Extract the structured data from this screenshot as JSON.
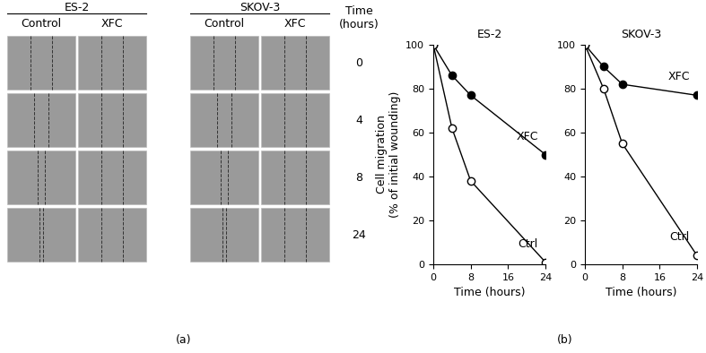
{
  "panel_a": {
    "label": "(a)",
    "groups": [
      {
        "name": "ES-2",
        "columns": [
          "Control",
          "XFC"
        ]
      },
      {
        "name": "SKOV-3",
        "columns": [
          "Control",
          "XFC"
        ]
      }
    ],
    "time_title": "Time\n(hours)",
    "times": [
      0,
      4,
      8,
      24
    ]
  },
  "panel_b": {
    "label": "(b)"
  },
  "chart_data": [
    {
      "type": "line",
      "title": "ES-2",
      "x_label": "Time (hours)",
      "y_label": "Cell migration\n(% of initial wounding)",
      "x": [
        0,
        4,
        8,
        24
      ],
      "series": [
        {
          "name": "XFC",
          "color": "#000000",
          "marker": "o",
          "line_style": "solid",
          "values": [
            100,
            86,
            77,
            50
          ]
        },
        {
          "name": "Ctrl",
          "color": "#ffffff",
          "marker": "o",
          "line_style": "solid",
          "values": [
            100,
            62,
            38,
            1
          ]
        }
      ],
      "xlim": [
        0,
        24
      ],
      "xticks": [
        0,
        8,
        16,
        24
      ],
      "ylim": [
        0,
        100
      ],
      "yticks": [
        0,
        20,
        40,
        60,
        80,
        100
      ]
    },
    {
      "type": "line",
      "title": "SKOV-3",
      "x_label": "Time (hours)",
      "x": [
        0,
        4,
        8,
        24
      ],
      "series": [
        {
          "name": "XFC",
          "color": "#000000",
          "marker": "o",
          "line_style": "solid",
          "values": [
            100,
            90,
            82,
            77
          ]
        },
        {
          "name": "Ctrl",
          "color": "#ffffff",
          "marker": "o",
          "line_style": "solid",
          "values": [
            100,
            80,
            55,
            4
          ]
        }
      ],
      "xlim": [
        0,
        24
      ],
      "xticks": [
        0,
        8,
        16,
        24
      ],
      "ylim": [
        0,
        100
      ],
      "yticks": [
        0,
        20,
        40,
        60,
        80,
        100
      ]
    }
  ]
}
